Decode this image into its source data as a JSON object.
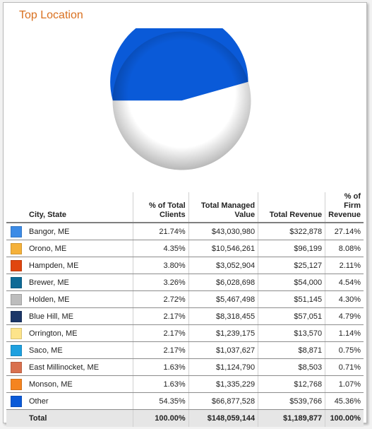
{
  "title": "Top Location",
  "table": {
    "headers": {
      "city": "City, State",
      "pct_clients_l1": "% of Total",
      "pct_clients_l2": "Clients",
      "managed_l1": "Total Managed",
      "managed_l2": "Value",
      "revenue": "Total Revenue",
      "pct_rev_l1": "% of Firm",
      "pct_rev_l2": "Revenue"
    },
    "rows": [
      {
        "city": "Bangor, ME",
        "pct_clients": "21.74%",
        "managed": "$43,030,980",
        "revenue": "$322,878",
        "pct_revenue": "27.14%",
        "color": "#3c8be6"
      },
      {
        "city": "Orono, ME",
        "pct_clients": "4.35%",
        "managed": "$10,546,261",
        "revenue": "$96,199",
        "pct_revenue": "8.08%",
        "color": "#f5b13a"
      },
      {
        "city": "Hampden, ME",
        "pct_clients": "3.80%",
        "managed": "$3,052,904",
        "revenue": "$25,127",
        "pct_revenue": "2.11%",
        "color": "#e0460f"
      },
      {
        "city": "Brewer, ME",
        "pct_clients": "3.26%",
        "managed": "$6,028,698",
        "revenue": "$54,000",
        "pct_revenue": "4.54%",
        "color": "#0e6a96"
      },
      {
        "city": "Holden, ME",
        "pct_clients": "2.72%",
        "managed": "$5,467,498",
        "revenue": "$51,145",
        "pct_revenue": "4.30%",
        "color": "#bdbdbd"
      },
      {
        "city": "Blue Hill, ME",
        "pct_clients": "2.17%",
        "managed": "$8,318,455",
        "revenue": "$57,051",
        "pct_revenue": "4.79%",
        "color": "#1c3768"
      },
      {
        "city": "Orrington, ME",
        "pct_clients": "2.17%",
        "managed": "$1,239,175",
        "revenue": "$13,570",
        "pct_revenue": "1.14%",
        "color": "#fde48a"
      },
      {
        "city": "Saco, ME",
        "pct_clients": "2.17%",
        "managed": "$1,037,627",
        "revenue": "$8,871",
        "pct_revenue": "0.75%",
        "color": "#1ea0df"
      },
      {
        "city": "East Millinocket, ME",
        "pct_clients": "1.63%",
        "managed": "$1,124,790",
        "revenue": "$8,503",
        "pct_revenue": "0.71%",
        "color": "#d9704e"
      },
      {
        "city": "Monson, ME",
        "pct_clients": "1.63%",
        "managed": "$1,335,229",
        "revenue": "$12,768",
        "pct_revenue": "1.07%",
        "color": "#f58420"
      },
      {
        "city": "Other",
        "pct_clients": "54.35%",
        "managed": "$66,877,528",
        "revenue": "$539,766",
        "pct_revenue": "45.36%",
        "color": "#0a5ad8"
      }
    ],
    "total": {
      "label": "Total",
      "pct_clients": "100.00%",
      "managed": "$148,059,144",
      "revenue": "$1,189,877",
      "pct_revenue": "100.00%"
    }
  },
  "chart_data": {
    "type": "pie",
    "categories": [
      "Bangor, ME",
      "Orono, ME",
      "Hampden, ME",
      "Brewer, ME",
      "Holden, ME",
      "Blue Hill, ME",
      "Orrington, ME",
      "Saco, ME",
      "East Millinocket, ME",
      "Monson, ME",
      "Other"
    ],
    "values": [
      21.74,
      4.35,
      3.8,
      3.26,
      2.72,
      2.17,
      2.17,
      2.17,
      1.63,
      1.63,
      54.35
    ],
    "colors": [
      "#3c8be6",
      "#f5b13a",
      "#e0460f",
      "#0e6a96",
      "#bdbdbd",
      "#1c3768",
      "#fde48a",
      "#1ea0df",
      "#d9704e",
      "#f58420",
      "#0a5ad8"
    ]
  }
}
